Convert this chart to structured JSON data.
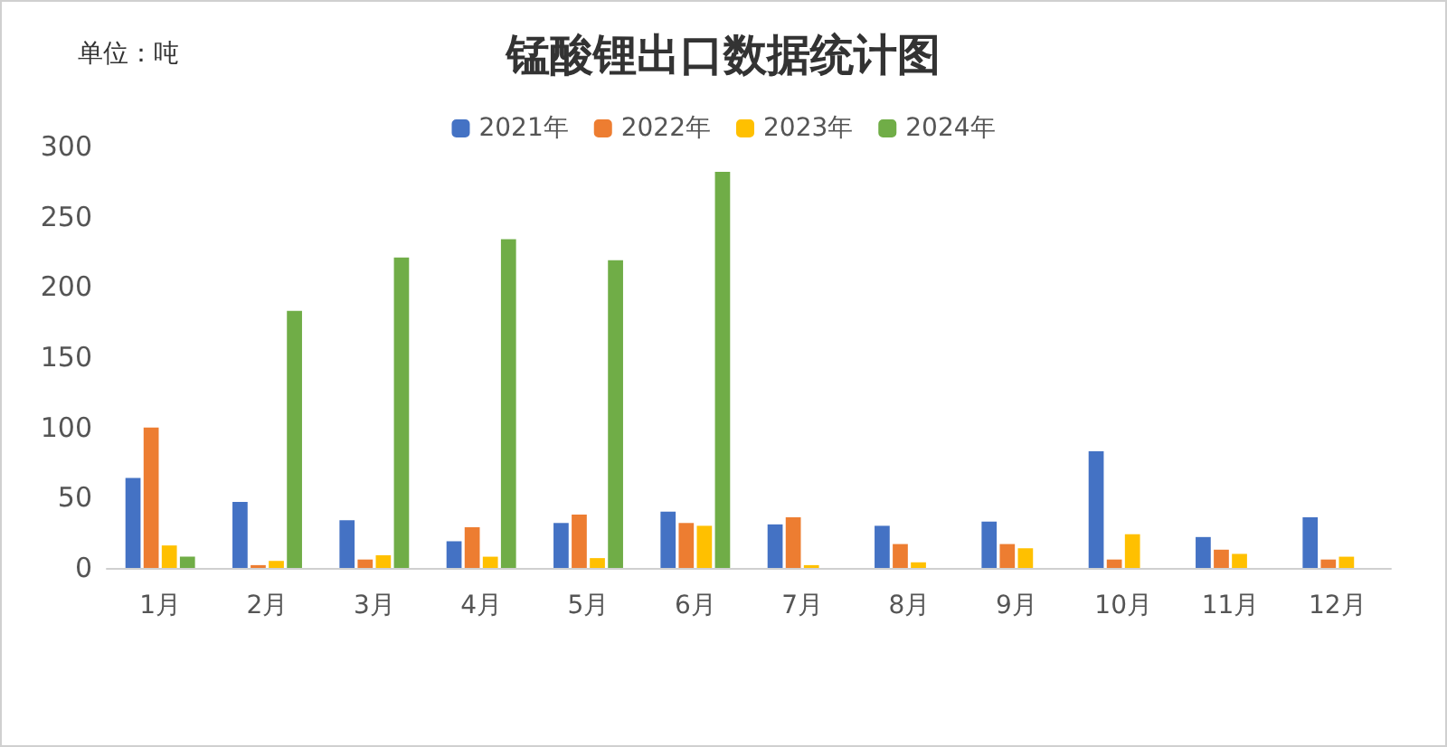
{
  "chart_data": {
    "type": "bar",
    "title": "锰酸锂出口数据统计图",
    "annotations": [
      "单位：吨"
    ],
    "categories": [
      "1月",
      "2月",
      "3月",
      "4月",
      "5月",
      "6月",
      "7月",
      "8月",
      "9月",
      "10月",
      "11月",
      "12月"
    ],
    "series": [
      {
        "name": "2021年",
        "color": "#4472c4",
        "values": [
          64,
          47,
          34,
          19,
          32,
          40,
          31,
          30,
          33,
          83,
          22,
          36
        ]
      },
      {
        "name": "2022年",
        "color": "#ed7d31",
        "values": [
          100,
          2,
          6,
          29,
          38,
          32,
          36,
          17,
          17,
          6,
          13,
          6
        ]
      },
      {
        "name": "2023年",
        "color": "#ffc000",
        "values": [
          16,
          5,
          9,
          8,
          7,
          30,
          2,
          4,
          14,
          24,
          10,
          8
        ]
      },
      {
        "name": "2024年",
        "color": "#70ad47",
        "values": [
          8,
          183,
          221,
          234,
          219,
          282,
          null,
          null,
          null,
          null,
          null,
          null
        ]
      }
    ],
    "ylim": [
      0,
      300
    ],
    "yticks": [
      0,
      50,
      100,
      150,
      200,
      250,
      300
    ],
    "grid": false,
    "legend": "top"
  }
}
